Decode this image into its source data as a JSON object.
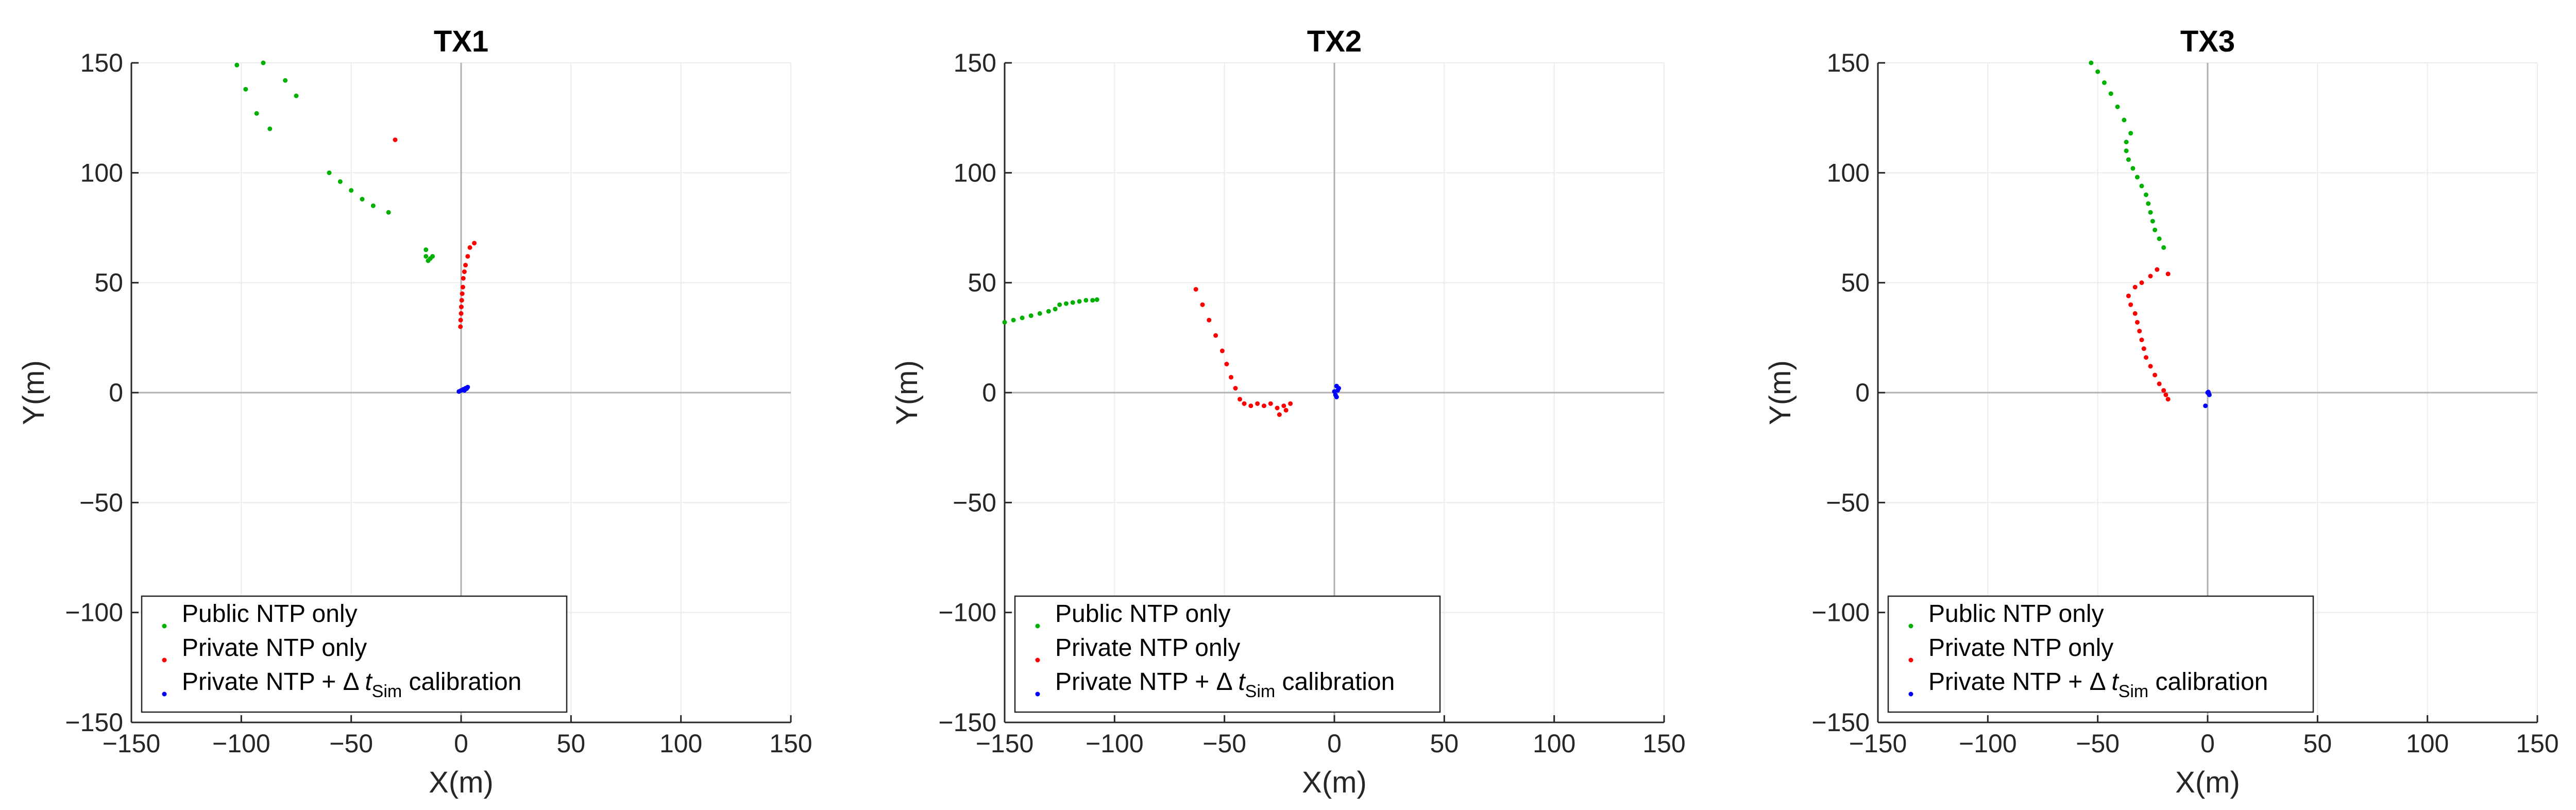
{
  "chart_data": [
    {
      "type": "scatter",
      "title": "TX1",
      "xlabel": "X(m)",
      "ylabel": "Y(m)",
      "xlim": [
        -150,
        150
      ],
      "ylim": [
        -150,
        150
      ],
      "xticks": [
        -150,
        -100,
        -50,
        0,
        50,
        100,
        150
      ],
      "yticks": [
        -150,
        -100,
        -50,
        0,
        50,
        100,
        150
      ],
      "grid": true,
      "legend_position": "bottom-left",
      "series": [
        {
          "name": "Public NTP only",
          "color": "#00b000",
          "points": [
            [
              -102,
              149
            ],
            [
              -90,
              150
            ],
            [
              -80,
              142
            ],
            [
              -98,
              138
            ],
            [
              -75,
              135
            ],
            [
              -93,
              127
            ],
            [
              -87,
              120
            ],
            [
              -60,
              100
            ],
            [
              -55,
              96
            ],
            [
              -50,
              92
            ],
            [
              -45,
              88
            ],
            [
              -40,
              85
            ],
            [
              -33,
              82
            ],
            [
              -16,
              65
            ],
            [
              -16,
              62
            ],
            [
              -15,
              60
            ],
            [
              -14,
              61
            ],
            [
              -13,
              62
            ]
          ]
        },
        {
          "name": "Private NTP only",
          "color": "#ff0000",
          "points": [
            [
              -30,
              115
            ],
            [
              6,
              68
            ],
            [
              4,
              66
            ],
            [
              3,
              62
            ],
            [
              2,
              58
            ],
            [
              1.5,
              55
            ],
            [
              1,
              52
            ],
            [
              0.8,
              48
            ],
            [
              0.5,
              45
            ],
            [
              0.3,
              42
            ],
            [
              0.1,
              39
            ],
            [
              0,
              36
            ],
            [
              -0.2,
              33
            ],
            [
              -0.3,
              30
            ]
          ]
        },
        {
          "name": "Private NTP + Δ t_Sim calibration",
          "color": "#0000ff",
          "points": [
            [
              0,
              1
            ],
            [
              1,
              1.5
            ],
            [
              2,
              2
            ],
            [
              3,
              2.5
            ],
            [
              -1,
              0.5
            ],
            [
              2.5,
              1.8
            ],
            [
              1.5,
              1
            ]
          ]
        }
      ],
      "legend": [
        {
          "label": "Public NTP only"
        },
        {
          "label": "Private NTP only"
        },
        {
          "label_prefix": "Private NTP + Δ ",
          "label_italic": "t",
          "label_sub": "Sim",
          "label_suffix": " calibration"
        }
      ]
    },
    {
      "type": "scatter",
      "title": "TX2",
      "xlabel": "X(m)",
      "ylabel": "Y(m)",
      "xlim": [
        -150,
        150
      ],
      "ylim": [
        -150,
        150
      ],
      "xticks": [
        -150,
        -100,
        -50,
        0,
        50,
        100,
        150
      ],
      "yticks": [
        -150,
        -100,
        -50,
        0,
        50,
        100,
        150
      ],
      "grid": true,
      "legend_position": "bottom-left",
      "series": [
        {
          "name": "Public NTP only",
          "color": "#00b000",
          "points": [
            [
              -150,
              32
            ],
            [
              -146,
              33
            ],
            [
              -142,
              34
            ],
            [
              -138,
              35
            ],
            [
              -134,
              36
            ],
            [
              -130,
              37
            ],
            [
              -127,
              38
            ],
            [
              -125,
              40
            ],
            [
              -122,
              40.5
            ],
            [
              -119,
              41
            ],
            [
              -116,
              41.5
            ],
            [
              -113,
              42
            ],
            [
              -110,
              42
            ],
            [
              -108,
              42.3
            ]
          ]
        },
        {
          "name": "Private NTP only",
          "color": "#ff0000",
          "points": [
            [
              -63,
              47
            ],
            [
              -60,
              40
            ],
            [
              -57,
              33
            ],
            [
              -54,
              26
            ],
            [
              -51,
              19
            ],
            [
              -49,
              13
            ],
            [
              -47,
              7
            ],
            [
              -45,
              2
            ],
            [
              -43,
              -3
            ],
            [
              -41,
              -5
            ],
            [
              -38,
              -6
            ],
            [
              -35,
              -5
            ],
            [
              -32,
              -6
            ],
            [
              -29,
              -5
            ],
            [
              -26,
              -7
            ],
            [
              -23,
              -6
            ],
            [
              -20,
              -5
            ],
            [
              -22,
              -8
            ],
            [
              -25,
              -10
            ]
          ]
        },
        {
          "name": "Private NTP + Δ t_Sim calibration",
          "color": "#0000ff",
          "points": [
            [
              1,
              3
            ],
            [
              1.5,
              1
            ],
            [
              0.5,
              -1
            ],
            [
              1,
              -2
            ],
            [
              2,
              2
            ],
            [
              0,
              0.5
            ]
          ]
        }
      ],
      "legend": [
        {
          "label": "Public NTP only"
        },
        {
          "label": "Private NTP only"
        },
        {
          "label_prefix": "Private NTP + Δ ",
          "label_italic": "t",
          "label_sub": "Sim",
          "label_suffix": " calibration"
        }
      ]
    },
    {
      "type": "scatter",
      "title": "TX3",
      "xlabel": "X(m)",
      "ylabel": "Y(m)",
      "xlim": [
        -150,
        150
      ],
      "ylim": [
        -150,
        150
      ],
      "xticks": [
        -150,
        -100,
        -50,
        0,
        50,
        100,
        150
      ],
      "yticks": [
        -150,
        -100,
        -50,
        0,
        50,
        100,
        150
      ],
      "grid": true,
      "legend_position": "bottom-left",
      "series": [
        {
          "name": "Public NTP only",
          "color": "#00b000",
          "points": [
            [
              -53,
              150
            ],
            [
              -50,
              146
            ],
            [
              -47,
              141
            ],
            [
              -44,
              136
            ],
            [
              -41,
              130
            ],
            [
              -38,
              124
            ],
            [
              -35,
              118
            ],
            [
              -37,
              114
            ],
            [
              -37,
              110
            ],
            [
              -36,
              106
            ],
            [
              -34,
              102
            ],
            [
              -32,
              98
            ],
            [
              -30,
              94
            ],
            [
              -28,
              90
            ],
            [
              -27,
              86
            ],
            [
              -26,
              82
            ],
            [
              -25,
              78
            ],
            [
              -24,
              74
            ],
            [
              -22,
              70
            ],
            [
              -20,
              66
            ]
          ]
        },
        {
          "name": "Private NTP only",
          "color": "#ff0000",
          "points": [
            [
              -18,
              54
            ],
            [
              -23,
              56
            ],
            [
              -26,
              53
            ],
            [
              -30,
              50
            ],
            [
              -33,
              48
            ],
            [
              -36,
              44
            ],
            [
              -35,
              40
            ],
            [
              -33,
              36
            ],
            [
              -32,
              32
            ],
            [
              -31,
              28
            ],
            [
              -30,
              24
            ],
            [
              -29,
              20
            ],
            [
              -28,
              16
            ],
            [
              -26,
              12
            ],
            [
              -24,
              8
            ],
            [
              -22,
              4
            ],
            [
              -20,
              1
            ],
            [
              -19,
              -1
            ],
            [
              -18,
              -3
            ]
          ]
        },
        {
          "name": "Private NTP + Δ t_Sim calibration",
          "color": "#0000ff",
          "points": [
            [
              0,
              0
            ],
            [
              0.5,
              -0.5
            ],
            [
              -1,
              -6
            ],
            [
              0.3,
              0.3
            ],
            [
              0.8,
              -1
            ]
          ]
        }
      ],
      "legend": [
        {
          "label": "Public NTP only"
        },
        {
          "label": "Private NTP only"
        },
        {
          "label_prefix": "Private NTP + Δ ",
          "label_italic": "t",
          "label_sub": "Sim",
          "label_suffix": " calibration"
        }
      ]
    }
  ]
}
